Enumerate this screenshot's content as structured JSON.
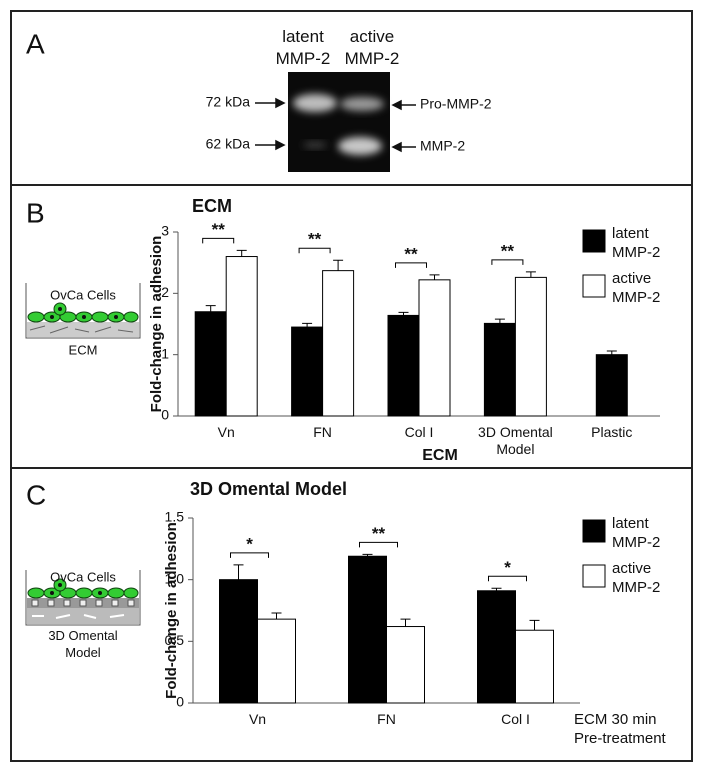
{
  "panel_a": {
    "label": "A",
    "lanes": [
      "latent MMP-2",
      "active MMP-2"
    ],
    "markers_left": [
      "72 kDa",
      "62 kDa"
    ],
    "markers_right": [
      "Pro-MMP-2",
      "MMP-2"
    ]
  },
  "panel_b": {
    "label": "B",
    "illustration": {
      "top": "OvCa Cells",
      "bottom": "ECM"
    }
  },
  "panel_c": {
    "label": "C",
    "illustration": {
      "top": "OvCa Cells",
      "bottom": "3D Omental Model"
    }
  },
  "chart_data": [
    {
      "type": "bar",
      "title": "ECM",
      "x_label": "ECM",
      "y_label": "Fold-change in adhesion",
      "categories": [
        "Vn",
        "FN",
        "Col I",
        "3D Omental Model",
        "Plastic"
      ],
      "series": [
        {
          "name": "latent MMP-2",
          "color": "#000000",
          "values": [
            1.7,
            1.45,
            1.64,
            1.51,
            1.0
          ],
          "errors": [
            0.1,
            0.06,
            0.05,
            0.07,
            0.06
          ]
        },
        {
          "name": "active MMP-2",
          "color": "#ffffff",
          "values": [
            2.6,
            2.37,
            2.22,
            2.26,
            null
          ],
          "errors": [
            0.1,
            0.17,
            0.08,
            0.09,
            null
          ]
        }
      ],
      "significance": [
        "**",
        "**",
        "**",
        "**",
        null
      ],
      "ylim": [
        0,
        3
      ],
      "yticks": [
        0,
        1,
        2,
        3
      ]
    },
    {
      "type": "bar",
      "title": "3D Omental Model",
      "x_label": "ECM 30 min Pre-treatment",
      "y_label": "Fold-change in adhesion",
      "categories": [
        "Vn",
        "FN",
        "Col I"
      ],
      "series": [
        {
          "name": "latent MMP-2",
          "color": "#000000",
          "values": [
            1.0,
            1.19,
            0.91
          ],
          "errors": [
            0.12,
            0.015,
            0.02
          ]
        },
        {
          "name": "active MMP-2",
          "color": "#ffffff",
          "values": [
            0.68,
            0.62,
            0.59
          ],
          "errors": [
            0.05,
            0.06,
            0.08
          ]
        }
      ],
      "significance": [
        "*",
        "**",
        "*"
      ],
      "ylim": [
        0,
        1.5
      ],
      "yticks": [
        0,
        0.5,
        {
          "value": 1,
          "label": "1.0"
        },
        1.5
      ]
    }
  ]
}
